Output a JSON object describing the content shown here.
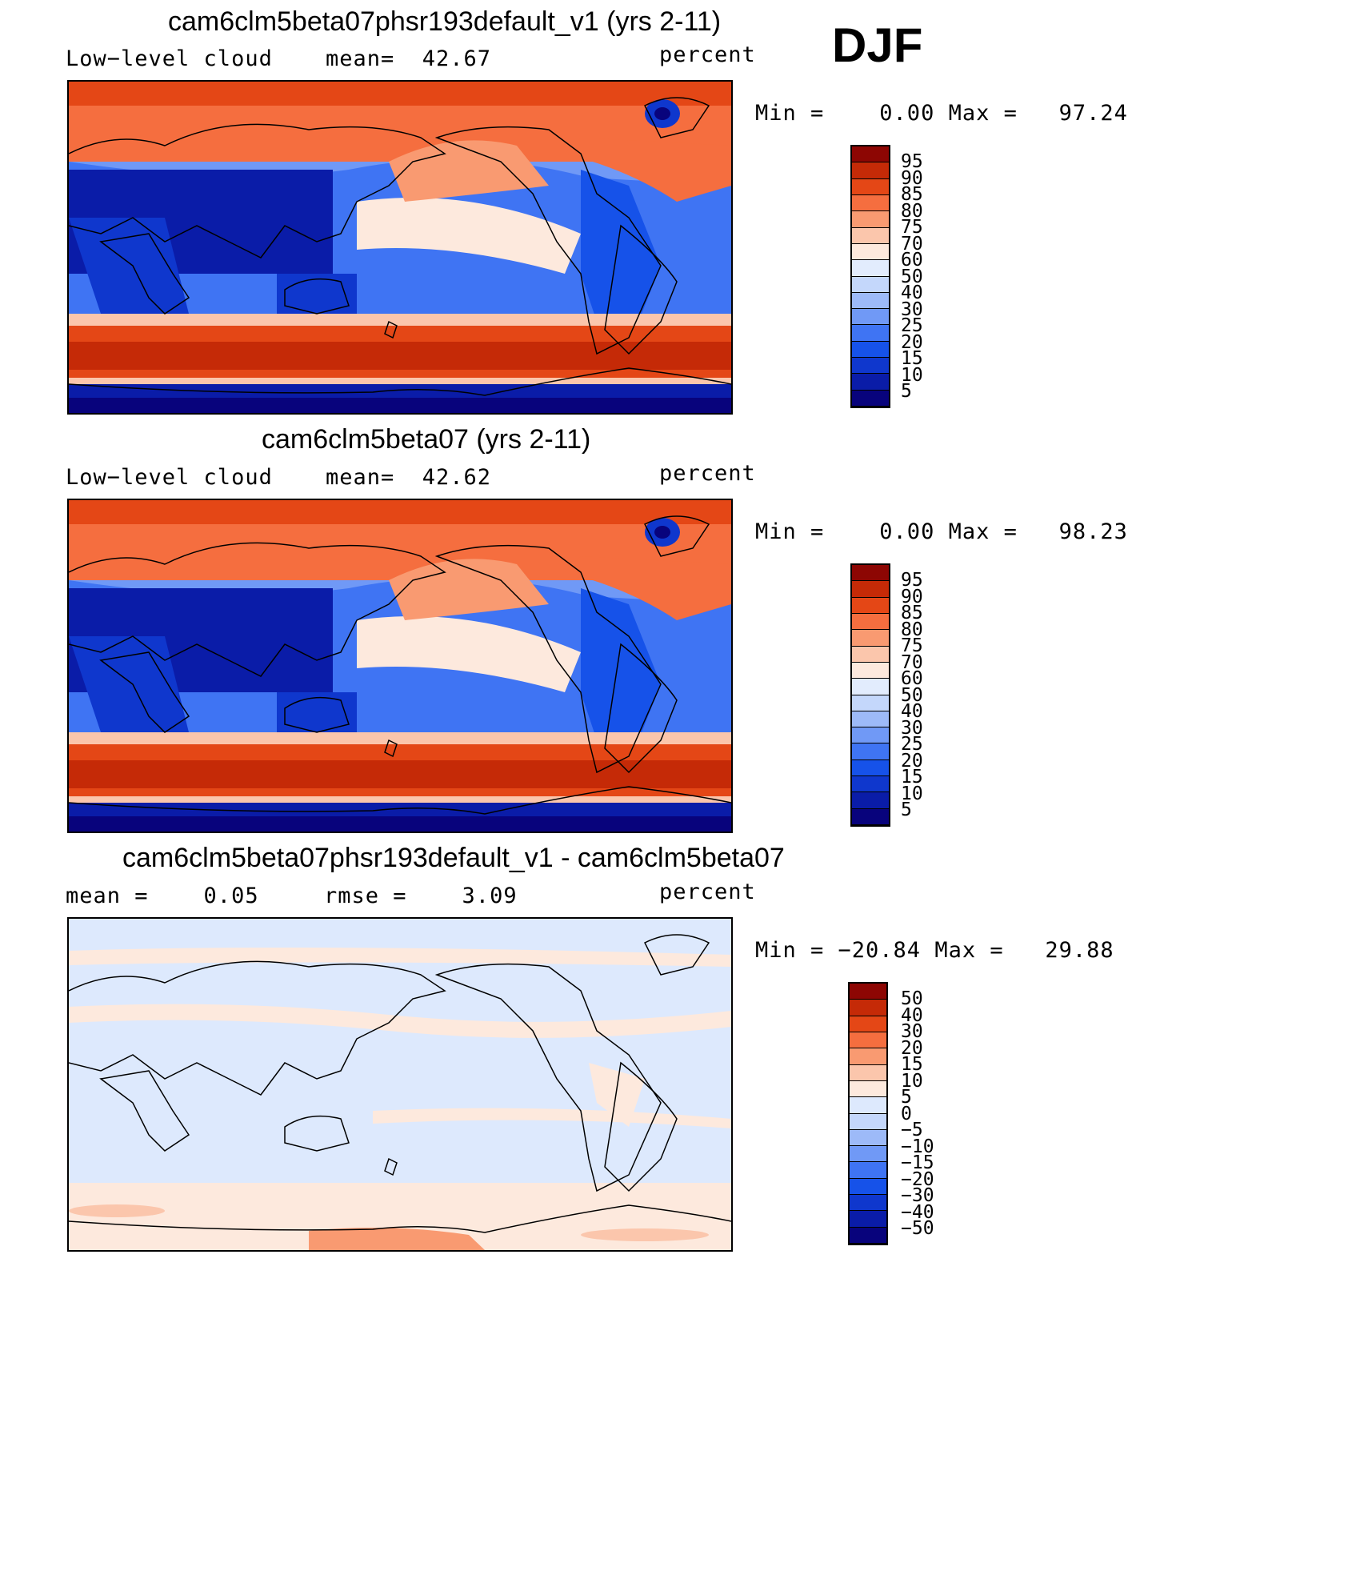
{
  "season": "DJF",
  "colors": {
    "cloud_scale": [
      "#08037c",
      "#0a1ca8",
      "#0f37cd",
      "#1652e9",
      "#3f74f3",
      "#7099f6",
      "#9dbaf8",
      "#c4d7fb",
      "#e2ecfd",
      "#fde9dd",
      "#fbc6ac",
      "#f99a71",
      "#f56e3f",
      "#e44716",
      "#c52a07",
      "#8d0603"
    ],
    "diff_scale": [
      "#08037c",
      "#0a1ca8",
      "#0f37cd",
      "#1652e9",
      "#3f74f3",
      "#7099f6",
      "#9dbaf8",
      "#c4d7fb",
      "#dde9fd",
      "#fde9dd",
      "#fbc6ac",
      "#f99a71",
      "#f56e3f",
      "#e44716",
      "#c52a07",
      "#8d0603"
    ]
  },
  "panels": [
    {
      "title": "cam6clm5beta07phsr193default_v1 (yrs 2-11)",
      "left_label": "Low−level cloud",
      "center_label": "mean=  42.67",
      "units": "percent",
      "minmax": "Min =    0.00 Max =   97.24",
      "colorbar_ticks": [
        "95",
        "90",
        "85",
        "80",
        "75",
        "70",
        "60",
        "50",
        "40",
        "30",
        "25",
        "20",
        "15",
        "10",
        "5"
      ],
      "kind": "cloud"
    },
    {
      "title": "cam6clm5beta07 (yrs 2-11)",
      "left_label": "Low−level cloud",
      "center_label": "mean=  42.62",
      "units": "percent",
      "minmax": "Min =    0.00 Max =   98.23",
      "colorbar_ticks": [
        "95",
        "90",
        "85",
        "80",
        "75",
        "70",
        "60",
        "50",
        "40",
        "30",
        "25",
        "20",
        "15",
        "10",
        "5"
      ],
      "kind": "cloud"
    },
    {
      "title": "cam6clm5beta07phsr193default_v1 - cam6clm5beta07",
      "left_label": "mean =    0.05",
      "center_label": "rmse =    3.09",
      "units": "percent",
      "minmax": "Min = −20.84 Max =   29.88",
      "colorbar_ticks": [
        "50",
        "40",
        "30",
        "20",
        "15",
        "10",
        "5",
        "0",
        "−5",
        "−10",
        "−15",
        "−20",
        "−30",
        "−40",
        "−50"
      ],
      "kind": "diff"
    }
  ]
}
